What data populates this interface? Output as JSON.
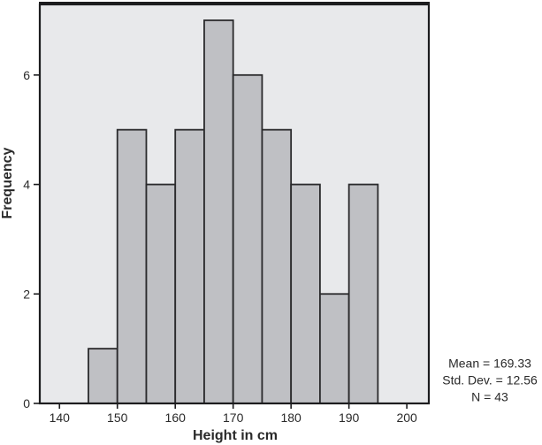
{
  "chart_data": {
    "type": "bar",
    "subtype": "histogram",
    "title": "",
    "xlabel": "Height in cm",
    "ylabel": "Frequency",
    "bin_width": 5,
    "bin_edges": [
      145,
      150,
      155,
      160,
      165,
      170,
      175,
      180,
      185,
      190,
      195
    ],
    "values": [
      1,
      5,
      4,
      5,
      7,
      6,
      5,
      4,
      2,
      4
    ],
    "x_ticks": [
      140,
      150,
      160,
      170,
      180,
      190,
      200
    ],
    "y_ticks": [
      0,
      2,
      4,
      6
    ],
    "xlim": [
      136.6,
      203.8
    ],
    "ylim": [
      0,
      7.29
    ],
    "grid": false,
    "legend": null,
    "colors": {
      "plot_background": "#e8e9eb",
      "bar_fill": "#bfc0c4",
      "bar_border": "#2a2a2c",
      "frame": "#1d1d1f",
      "text": "#2a2a2a"
    },
    "stats": {
      "lines": [
        "Mean = 169.33",
        "Std. Dev. = 12.56",
        "N = 43"
      ],
      "mean": 169.33,
      "std_dev": 12.56,
      "n": 43
    }
  }
}
